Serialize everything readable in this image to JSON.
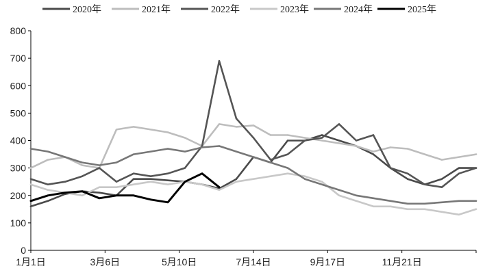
{
  "chart_data": {
    "type": "line",
    "title": "",
    "xlabel": "",
    "ylabel": "",
    "ylim": [
      0,
      800
    ],
    "yticks": [
      "0",
      "100",
      "200",
      "300",
      "400",
      "500",
      "600",
      "700",
      "800"
    ],
    "xticks": [
      "1月1日",
      "3月6日",
      "5月10日",
      "7月14日",
      "9月17日",
      "11月21日"
    ],
    "x": [
      "1/1",
      "1/15",
      "1/29",
      "2/12",
      "2/26",
      "3/11",
      "3/25",
      "4/8",
      "4/22",
      "5/6",
      "5/20",
      "6/3",
      "6/17",
      "7/1",
      "7/15",
      "7/29",
      "8/12",
      "8/26",
      "9/9",
      "9/23",
      "10/7",
      "10/21",
      "11/4",
      "11/18",
      "12/2",
      "12/16",
      "12/30"
    ],
    "legend_position": "top",
    "grid": false,
    "series": [
      {
        "name": "2020年",
        "color": "#4a4a4a",
        "values": [
          160,
          180,
          205,
          215,
          210,
          200,
          260,
          260,
          255,
          250,
          240,
          225,
          260,
          340,
          320,
          400,
          400,
          420,
          400,
          380,
          350,
          300,
          260,
          240,
          260,
          300,
          300
        ]
      },
      {
        "name": "2021年",
        "color": "#bdbdbd",
        "values": [
          300,
          330,
          340,
          310,
          300,
          440,
          450,
          440,
          430,
          410,
          380,
          460,
          450,
          455,
          420,
          420,
          410,
          400,
          390,
          380,
          360,
          375,
          370,
          350,
          330,
          340,
          350
        ]
      },
      {
        "name": "2022年",
        "color": "#555555",
        "values": [
          260,
          240,
          250,
          270,
          300,
          250,
          280,
          270,
          280,
          300,
          380,
          690,
          480,
          410,
          330,
          350,
          400,
          410,
          460,
          400,
          420,
          300,
          280,
          240,
          230,
          280,
          300
        ]
      },
      {
        "name": "2023年",
        "color": "#c8c8c8",
        "values": [
          240,
          220,
          210,
          200,
          230,
          230,
          240,
          250,
          240,
          250,
          240,
          220,
          250,
          260,
          270,
          280,
          270,
          250,
          200,
          180,
          160,
          160,
          150,
          150,
          140,
          130,
          150
        ]
      },
      {
        "name": "2024年",
        "color": "#777777",
        "values": [
          370,
          360,
          340,
          320,
          310,
          320,
          350,
          360,
          370,
          360,
          375,
          380,
          360,
          340,
          320,
          300,
          260,
          240,
          220,
          200,
          190,
          180,
          170,
          170,
          175,
          180,
          180
        ]
      },
      {
        "name": "2025年",
        "color": "#000000",
        "values": [
          180,
          200,
          210,
          215,
          190,
          200,
          200,
          185,
          175,
          250,
          280,
          230,
          null,
          null,
          null,
          null,
          null,
          null,
          null,
          null,
          null,
          null,
          null,
          null,
          null,
          null,
          null
        ]
      }
    ]
  }
}
